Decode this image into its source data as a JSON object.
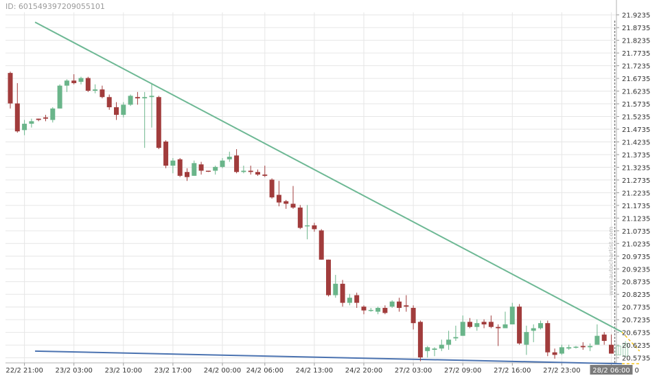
{
  "id_text": "ID: 601549397209055101",
  "watermark": "www.autochartist.com",
  "colors": {
    "bull": "#6ab58a",
    "bear": "#a13c3c",
    "resistance": "#6db894",
    "support": "#4a72b0",
    "projection": "#f5c518",
    "grid": "#e6e6e6",
    "axis_text": "#333333",
    "highlight_bg": "#7a7a7a"
  },
  "chart_data": {
    "type": "candlestick",
    "title": "",
    "xlabel": "",
    "ylabel": "",
    "ylim": [
      20.5535,
      21.9335
    ],
    "grid": true,
    "y_ticks": [
      "21.9235",
      "21.8735",
      "21.8235",
      "21.7735",
      "21.7235",
      "21.6735",
      "21.6235",
      "21.5735",
      "21.5235",
      "21.4735",
      "21.4235",
      "21.3735",
      "21.3235",
      "21.2735",
      "21.2235",
      "21.1735",
      "21.1235",
      "21.0735",
      "21.0235",
      "20.9735",
      "20.9235",
      "20.8735",
      "20.8235",
      "20.7735",
      "20.7235",
      "20.6735",
      "20.6235",
      "20.5735"
    ],
    "x_ticks": [
      {
        "i": 2,
        "label": "22/2 21:00"
      },
      {
        "i": 9,
        "label": "23/2 03:00"
      },
      {
        "i": 16,
        "label": "23/2 10:00"
      },
      {
        "i": 23,
        "label": "23/2 17:00"
      },
      {
        "i": 30,
        "label": "24/2 00:00"
      },
      {
        "i": 36,
        "label": "24/2 06:00"
      },
      {
        "i": 43,
        "label": "24/2 13:00"
      },
      {
        "i": 50,
        "label": "24/2 20:00"
      },
      {
        "i": 57,
        "label": "27/2 03:00"
      },
      {
        "i": 64,
        "label": "27/2 09:00"
      },
      {
        "i": 71,
        "label": "27/2 16:00"
      },
      {
        "i": 78,
        "label": "27/2 23:00"
      },
      {
        "i": 85,
        "label": "28/2 06:00",
        "highlight": true
      }
    ],
    "x_tick_tail": "0",
    "candles": [
      [
        21.695,
        21.7,
        21.555,
        21.575
      ],
      [
        21.575,
        21.655,
        21.46,
        21.465
      ],
      [
        21.47,
        21.51,
        21.45,
        21.495
      ],
      [
        21.495,
        21.515,
        21.48,
        21.505
      ],
      [
        21.515,
        21.515,
        21.505,
        21.51
      ],
      [
        21.52,
        21.53,
        21.505,
        21.515
      ],
      [
        21.51,
        21.56,
        21.5,
        21.555
      ],
      [
        21.555,
        21.65,
        21.555,
        21.645
      ],
      [
        21.645,
        21.67,
        21.62,
        21.665
      ],
      [
        21.665,
        21.69,
        21.65,
        21.655
      ],
      [
        21.66,
        21.68,
        21.65,
        21.675
      ],
      [
        21.675,
        21.68,
        21.62,
        21.625
      ],
      [
        21.625,
        21.65,
        21.615,
        21.63
      ],
      [
        21.63,
        21.645,
        21.595,
        21.6
      ],
      [
        21.6,
        21.61,
        21.55,
        21.56
      ],
      [
        21.56,
        21.58,
        21.51,
        21.53
      ],
      [
        21.53,
        21.58,
        21.52,
        21.57
      ],
      [
        21.57,
        21.61,
        21.565,
        21.605
      ],
      [
        21.6,
        21.62,
        21.57,
        21.595
      ],
      [
        21.595,
        21.62,
        21.4,
        21.6
      ],
      [
        21.6,
        21.655,
        21.48,
        21.605
      ],
      [
        21.6,
        21.605,
        21.395,
        21.4
      ],
      [
        21.425,
        21.43,
        21.32,
        21.33
      ],
      [
        21.33,
        21.36,
        21.3,
        21.35
      ],
      [
        21.355,
        21.36,
        21.285,
        21.29
      ],
      [
        21.305,
        21.32,
        21.27,
        21.285
      ],
      [
        21.29,
        21.35,
        21.29,
        21.34
      ],
      [
        21.335,
        21.345,
        21.295,
        21.31
      ],
      [
        21.31,
        21.31,
        21.305,
        21.308
      ],
      [
        21.31,
        21.33,
        21.295,
        21.325
      ],
      [
        21.325,
        21.36,
        21.32,
        21.35
      ],
      [
        21.355,
        21.385,
        21.345,
        21.365
      ],
      [
        21.37,
        21.395,
        21.3,
        21.305
      ],
      [
        21.305,
        21.33,
        21.3,
        21.31
      ],
      [
        21.31,
        21.33,
        21.295,
        21.305
      ],
      [
        21.305,
        21.315,
        21.29,
        21.295
      ],
      [
        21.295,
        21.33,
        21.285,
        21.29
      ],
      [
        21.275,
        21.28,
        21.2,
        21.205
      ],
      [
        21.215,
        21.27,
        21.17,
        21.185
      ],
      [
        21.19,
        21.195,
        21.16,
        21.18
      ],
      [
        21.18,
        21.25,
        21.16,
        21.165
      ],
      [
        21.165,
        21.175,
        21.08,
        21.085
      ],
      [
        21.095,
        21.175,
        21.04,
        21.095
      ],
      [
        21.095,
        21.105,
        21.07,
        21.08
      ],
      [
        21.075,
        21.08,
        20.96,
        20.96
      ],
      [
        20.96,
        20.96,
        20.815,
        20.82
      ],
      [
        20.82,
        20.9,
        20.81,
        20.865
      ],
      [
        20.865,
        20.88,
        20.775,
        20.79
      ],
      [
        20.79,
        20.825,
        20.78,
        20.81
      ],
      [
        20.82,
        20.83,
        20.77,
        20.79
      ],
      [
        20.775,
        20.78,
        20.745,
        20.76
      ],
      [
        20.76,
        20.77,
        20.755,
        20.762
      ],
      [
        20.755,
        20.775,
        20.745,
        20.77
      ],
      [
        20.77,
        20.78,
        20.745,
        20.75
      ],
      [
        20.775,
        20.8,
        20.77,
        20.795
      ],
      [
        20.795,
        20.81,
        20.755,
        20.77
      ],
      [
        20.78,
        20.82,
        20.755,
        20.775
      ],
      [
        20.77,
        20.78,
        20.685,
        20.71
      ],
      [
        20.715,
        20.72,
        20.56,
        20.575
      ],
      [
        20.6,
        20.62,
        20.575,
        20.615
      ],
      [
        20.605,
        20.615,
        20.58,
        20.61
      ],
      [
        20.61,
        20.645,
        20.6,
        20.625
      ],
      [
        20.625,
        20.68,
        20.605,
        20.645
      ],
      [
        20.65,
        20.7,
        20.64,
        20.655
      ],
      [
        20.66,
        20.74,
        20.66,
        20.715
      ],
      [
        20.715,
        20.73,
        20.69,
        20.695
      ],
      [
        20.695,
        20.725,
        20.68,
        20.71
      ],
      [
        20.715,
        20.725,
        20.69,
        20.705
      ],
      [
        20.715,
        20.74,
        20.69,
        20.695
      ],
      [
        20.695,
        20.705,
        20.62,
        20.69
      ],
      [
        20.69,
        20.755,
        20.69,
        20.705
      ],
      [
        20.705,
        20.79,
        20.705,
        20.775
      ],
      [
        20.775,
        20.785,
        20.625,
        20.63
      ],
      [
        20.625,
        20.7,
        20.585,
        20.675
      ],
      [
        20.68,
        20.705,
        20.635,
        20.69
      ],
      [
        20.69,
        20.72,
        20.685,
        20.71
      ],
      [
        20.71,
        20.72,
        20.58,
        20.595
      ],
      [
        20.595,
        20.61,
        20.57,
        20.585
      ],
      [
        20.59,
        20.625,
        20.585,
        20.615
      ],
      [
        20.61,
        20.625,
        20.605,
        20.615
      ],
      [
        20.615,
        20.62,
        20.61,
        20.617
      ],
      [
        20.62,
        20.635,
        20.605,
        20.615
      ],
      [
        20.615,
        20.63,
        20.6,
        20.62
      ],
      [
        20.625,
        20.705,
        20.625,
        20.66
      ],
      [
        20.665,
        20.675,
        20.625,
        20.64
      ],
      [
        20.625,
        20.665,
        20.59,
        20.59
      ]
    ],
    "overlays": {
      "resistance_line": {
        "x": [
          3.5,
          86.5
        ],
        "y": [
          21.895,
          20.675
        ]
      },
      "support_line": {
        "x": [
          3.5,
          86.5
        ],
        "y": [
          20.6,
          20.55
        ]
      },
      "forecast_zone": {
        "upper": {
          "x": [
            86.5,
            89.0
          ],
          "y": [
            20.675,
            20.6
          ]
        },
        "lower": {
          "x": [
            86.5,
            89.0
          ],
          "y": [
            20.55,
            20.55
          ]
        }
      },
      "current_time_index": 85.5,
      "ghost_candles": [
        [
          20.585,
          20.625,
          20.585,
          20.62
        ],
        [
          20.58,
          20.64,
          20.58,
          20.63
        ]
      ]
    }
  }
}
